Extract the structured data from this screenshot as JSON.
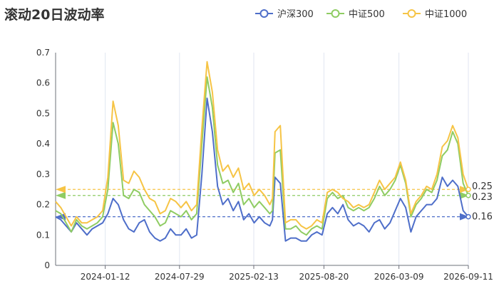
{
  "chart_data": {
    "type": "line",
    "title": "滚动20日波动率",
    "xlabel": "",
    "ylabel": "",
    "ylim": [
      0,
      0.7
    ],
    "y_ticks": [
      "0",
      "0.1",
      "0.2",
      "0.3",
      "0.4",
      "0.5",
      "0.6",
      "0.7"
    ],
    "x_range": [
      "2023-09-01",
      "2026-09-11"
    ],
    "x_ticks": [
      "2024-01-12",
      "2024-07-29",
      "2025-02-13",
      "2025-08-20",
      "2026-03-09",
      "2026-09-11"
    ],
    "grid": "vertical",
    "legend_position": "top-right",
    "series": [
      {
        "name": "沪深300",
        "color": "#4e6ec9",
        "values": [
          [
            "2023-09-01",
            0.16
          ],
          [
            "2023-09-15",
            0.15
          ],
          [
            "2023-09-29",
            0.13
          ],
          [
            "2023-10-13",
            0.11
          ],
          [
            "2023-10-27",
            0.14
          ],
          [
            "2023-11-10",
            0.12
          ],
          [
            "2023-11-24",
            0.1
          ],
          [
            "2023-12-08",
            0.12
          ],
          [
            "2023-12-22",
            0.13
          ],
          [
            "2024-01-05",
            0.14
          ],
          [
            "2024-01-19",
            0.17
          ],
          [
            "2024-02-02",
            0.22
          ],
          [
            "2024-02-16",
            0.2
          ],
          [
            "2024-03-01",
            0.15
          ],
          [
            "2024-03-15",
            0.12
          ],
          [
            "2024-03-29",
            0.11
          ],
          [
            "2024-04-12",
            0.14
          ],
          [
            "2024-04-26",
            0.15
          ],
          [
            "2024-05-10",
            0.11
          ],
          [
            "2024-05-24",
            0.09
          ],
          [
            "2024-06-07",
            0.08
          ],
          [
            "2024-06-21",
            0.09
          ],
          [
            "2024-07-05",
            0.12
          ],
          [
            "2024-07-19",
            0.1
          ],
          [
            "2024-08-02",
            0.1
          ],
          [
            "2024-08-16",
            0.12
          ],
          [
            "2024-08-30",
            0.09
          ],
          [
            "2024-09-13",
            0.1
          ],
          [
            "2024-09-27",
            0.3
          ],
          [
            "2024-10-11",
            0.55
          ],
          [
            "2024-10-25",
            0.44
          ],
          [
            "2024-11-08",
            0.26
          ],
          [
            "2024-11-22",
            0.2
          ],
          [
            "2024-12-06",
            0.22
          ],
          [
            "2024-12-20",
            0.18
          ],
          [
            "2025-01-03",
            0.21
          ],
          [
            "2025-01-17",
            0.15
          ],
          [
            "2025-01-31",
            0.17
          ],
          [
            "2025-02-14",
            0.14
          ],
          [
            "2025-02-28",
            0.16
          ],
          [
            "2025-03-14",
            0.14
          ],
          [
            "2025-03-28",
            0.13
          ],
          [
            "2025-04-04",
            0.15
          ],
          [
            "2025-04-11",
            0.29
          ],
          [
            "2025-04-25",
            0.27
          ],
          [
            "2025-05-09",
            0.08
          ],
          [
            "2025-05-23",
            0.09
          ],
          [
            "2025-06-06",
            0.09
          ],
          [
            "2025-06-20",
            0.08
          ],
          [
            "2025-07-04",
            0.08
          ],
          [
            "2025-07-18",
            0.1
          ],
          [
            "2025-08-01",
            0.11
          ],
          [
            "2025-08-15",
            0.1
          ],
          [
            "2025-08-29",
            0.17
          ],
          [
            "2025-09-12",
            0.19
          ],
          [
            "2025-09-26",
            0.17
          ],
          [
            "2025-10-10",
            0.2
          ],
          [
            "2025-10-24",
            0.15
          ],
          [
            "2025-11-07",
            0.13
          ],
          [
            "2025-11-21",
            0.14
          ],
          [
            "2025-12-05",
            0.13
          ],
          [
            "2025-12-19",
            0.11
          ],
          [
            "2026-01-02",
            0.14
          ],
          [
            "2026-01-16",
            0.15
          ],
          [
            "2026-01-30",
            0.12
          ],
          [
            "2026-02-13",
            0.14
          ],
          [
            "2026-02-27",
            0.18
          ],
          [
            "2026-03-13",
            0.22
          ],
          [
            "2026-03-27",
            0.19
          ],
          [
            "2026-04-10",
            0.11
          ],
          [
            "2026-04-24",
            0.16
          ],
          [
            "2026-05-08",
            0.18
          ],
          [
            "2026-05-22",
            0.2
          ],
          [
            "2026-06-05",
            0.2
          ],
          [
            "2026-06-19",
            0.22
          ],
          [
            "2026-07-03",
            0.29
          ],
          [
            "2026-07-17",
            0.26
          ],
          [
            "2026-07-31",
            0.28
          ],
          [
            "2026-08-14",
            0.26
          ],
          [
            "2026-08-28",
            0.18
          ],
          [
            "2026-09-11",
            0.16
          ]
        ]
      },
      {
        "name": "中证500",
        "color": "#8fcc63",
        "values": [
          [
            "2023-09-01",
            0.18
          ],
          [
            "2023-09-15",
            0.17
          ],
          [
            "2023-09-29",
            0.14
          ],
          [
            "2023-10-13",
            0.11
          ],
          [
            "2023-10-27",
            0.15
          ],
          [
            "2023-11-10",
            0.13
          ],
          [
            "2023-11-24",
            0.12
          ],
          [
            "2023-12-08",
            0.13
          ],
          [
            "2023-12-22",
            0.14
          ],
          [
            "2024-01-05",
            0.16
          ],
          [
            "2024-01-19",
            0.25
          ],
          [
            "2024-02-02",
            0.47
          ],
          [
            "2024-02-16",
            0.4
          ],
          [
            "2024-03-01",
            0.23
          ],
          [
            "2024-03-15",
            0.22
          ],
          [
            "2024-03-29",
            0.25
          ],
          [
            "2024-04-12",
            0.24
          ],
          [
            "2024-04-26",
            0.2
          ],
          [
            "2024-05-10",
            0.18
          ],
          [
            "2024-05-24",
            0.16
          ],
          [
            "2024-06-07",
            0.13
          ],
          [
            "2024-06-21",
            0.14
          ],
          [
            "2024-07-05",
            0.18
          ],
          [
            "2024-07-19",
            0.17
          ],
          [
            "2024-08-02",
            0.16
          ],
          [
            "2024-08-16",
            0.18
          ],
          [
            "2024-08-30",
            0.15
          ],
          [
            "2024-09-13",
            0.17
          ],
          [
            "2024-09-27",
            0.4
          ],
          [
            "2024-10-11",
            0.62
          ],
          [
            "2024-10-25",
            0.52
          ],
          [
            "2024-11-08",
            0.33
          ],
          [
            "2024-11-22",
            0.27
          ],
          [
            "2024-12-06",
            0.28
          ],
          [
            "2024-12-20",
            0.24
          ],
          [
            "2025-01-03",
            0.27
          ],
          [
            "2025-01-17",
            0.2
          ],
          [
            "2025-01-31",
            0.22
          ],
          [
            "2025-02-14",
            0.19
          ],
          [
            "2025-02-28",
            0.21
          ],
          [
            "2025-03-14",
            0.19
          ],
          [
            "2025-03-28",
            0.17
          ],
          [
            "2025-04-04",
            0.18
          ],
          [
            "2025-04-11",
            0.37
          ],
          [
            "2025-04-25",
            0.38
          ],
          [
            "2025-05-09",
            0.12
          ],
          [
            "2025-05-23",
            0.12
          ],
          [
            "2025-06-06",
            0.13
          ],
          [
            "2025-06-20",
            0.11
          ],
          [
            "2025-07-04",
            0.1
          ],
          [
            "2025-07-18",
            0.12
          ],
          [
            "2025-08-01",
            0.13
          ],
          [
            "2025-08-15",
            0.12
          ],
          [
            "2025-08-29",
            0.22
          ],
          [
            "2025-09-12",
            0.24
          ],
          [
            "2025-09-26",
            0.22
          ],
          [
            "2025-10-10",
            0.23
          ],
          [
            "2025-10-24",
            0.19
          ],
          [
            "2025-11-07",
            0.18
          ],
          [
            "2025-11-21",
            0.19
          ],
          [
            "2025-12-05",
            0.18
          ],
          [
            "2025-12-19",
            0.19
          ],
          [
            "2026-01-02",
            0.22
          ],
          [
            "2026-01-16",
            0.26
          ],
          [
            "2026-01-30",
            0.23
          ],
          [
            "2026-02-13",
            0.25
          ],
          [
            "2026-02-27",
            0.28
          ],
          [
            "2026-03-13",
            0.33
          ],
          [
            "2026-03-27",
            0.27
          ],
          [
            "2026-04-10",
            0.16
          ],
          [
            "2026-04-24",
            0.2
          ],
          [
            "2026-05-08",
            0.22
          ],
          [
            "2026-05-22",
            0.25
          ],
          [
            "2026-06-05",
            0.24
          ],
          [
            "2026-06-19",
            0.28
          ],
          [
            "2026-07-03",
            0.36
          ],
          [
            "2026-07-17",
            0.38
          ],
          [
            "2026-07-31",
            0.44
          ],
          [
            "2026-08-14",
            0.4
          ],
          [
            "2026-08-28",
            0.27
          ],
          [
            "2026-09-11",
            0.23
          ]
        ]
      },
      {
        "name": "中证1000",
        "color": "#f6c445",
        "values": [
          [
            "2023-09-01",
            0.21
          ],
          [
            "2023-09-15",
            0.19
          ],
          [
            "2023-09-29",
            0.16
          ],
          [
            "2023-10-13",
            0.13
          ],
          [
            "2023-10-27",
            0.16
          ],
          [
            "2023-11-10",
            0.14
          ],
          [
            "2023-11-24",
            0.14
          ],
          [
            "2023-12-08",
            0.15
          ],
          [
            "2023-12-22",
            0.16
          ],
          [
            "2024-01-05",
            0.18
          ],
          [
            "2024-01-19",
            0.29
          ],
          [
            "2024-02-02",
            0.54
          ],
          [
            "2024-02-16",
            0.46
          ],
          [
            "2024-03-01",
            0.28
          ],
          [
            "2024-03-15",
            0.27
          ],
          [
            "2024-03-29",
            0.31
          ],
          [
            "2024-04-12",
            0.29
          ],
          [
            "2024-04-26",
            0.25
          ],
          [
            "2024-05-10",
            0.22
          ],
          [
            "2024-05-24",
            0.21
          ],
          [
            "2024-06-07",
            0.17
          ],
          [
            "2024-06-21",
            0.18
          ],
          [
            "2024-07-05",
            0.22
          ],
          [
            "2024-07-19",
            0.21
          ],
          [
            "2024-08-02",
            0.19
          ],
          [
            "2024-08-16",
            0.21
          ],
          [
            "2024-08-30",
            0.18
          ],
          [
            "2024-09-13",
            0.2
          ],
          [
            "2024-09-27",
            0.45
          ],
          [
            "2024-10-11",
            0.67
          ],
          [
            "2024-10-25",
            0.57
          ],
          [
            "2024-11-08",
            0.38
          ],
          [
            "2024-11-22",
            0.31
          ],
          [
            "2024-12-06",
            0.33
          ],
          [
            "2024-12-20",
            0.29
          ],
          [
            "2025-01-03",
            0.32
          ],
          [
            "2025-01-17",
            0.25
          ],
          [
            "2025-01-31",
            0.27
          ],
          [
            "2025-02-14",
            0.23
          ],
          [
            "2025-02-28",
            0.25
          ],
          [
            "2025-03-14",
            0.23
          ],
          [
            "2025-03-28",
            0.2
          ],
          [
            "2025-04-04",
            0.22
          ],
          [
            "2025-04-11",
            0.44
          ],
          [
            "2025-04-25",
            0.46
          ],
          [
            "2025-05-09",
            0.14
          ],
          [
            "2025-05-23",
            0.15
          ],
          [
            "2025-06-06",
            0.15
          ],
          [
            "2025-06-20",
            0.13
          ],
          [
            "2025-07-04",
            0.12
          ],
          [
            "2025-07-18",
            0.13
          ],
          [
            "2025-08-01",
            0.15
          ],
          [
            "2025-08-15",
            0.14
          ],
          [
            "2025-08-29",
            0.24
          ],
          [
            "2025-09-12",
            0.25
          ],
          [
            "2025-09-26",
            0.24
          ],
          [
            "2025-10-10",
            0.22
          ],
          [
            "2025-10-24",
            0.21
          ],
          [
            "2025-11-07",
            0.19
          ],
          [
            "2025-11-21",
            0.2
          ],
          [
            "2025-12-05",
            0.19
          ],
          [
            "2025-12-19",
            0.2
          ],
          [
            "2026-01-02",
            0.24
          ],
          [
            "2026-01-16",
            0.28
          ],
          [
            "2026-01-30",
            0.25
          ],
          [
            "2026-02-13",
            0.27
          ],
          [
            "2026-02-27",
            0.29
          ],
          [
            "2026-03-13",
            0.34
          ],
          [
            "2026-03-27",
            0.28
          ],
          [
            "2026-04-10",
            0.17
          ],
          [
            "2026-04-24",
            0.21
          ],
          [
            "2026-05-08",
            0.23
          ],
          [
            "2026-05-22",
            0.26
          ],
          [
            "2026-06-05",
            0.25
          ],
          [
            "2026-06-19",
            0.3
          ],
          [
            "2026-07-03",
            0.39
          ],
          [
            "2026-07-17",
            0.41
          ],
          [
            "2026-07-31",
            0.46
          ],
          [
            "2026-08-14",
            0.42
          ],
          [
            "2026-08-28",
            0.3
          ],
          [
            "2026-09-11",
            0.25
          ]
        ]
      }
    ],
    "reference_lines": [
      {
        "value": 0.16,
        "label": "0.16",
        "color": "#4e6ec9"
      },
      {
        "value": 0.23,
        "label": "0.23",
        "color": "#8fcc63"
      },
      {
        "value": 0.25,
        "label": "0.25",
        "color": "#f6c445"
      }
    ]
  }
}
